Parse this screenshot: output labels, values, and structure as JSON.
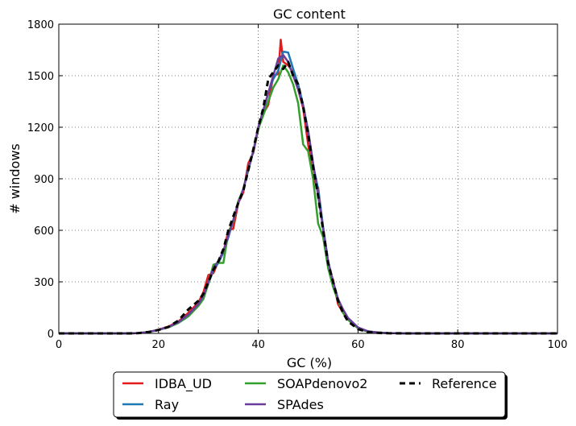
{
  "chart_data": {
    "type": "line",
    "title": "GC content",
    "xlabel": "GC (%)",
    "ylabel": "# windows",
    "xlim": [
      0,
      100
    ],
    "ylim": [
      0,
      1800
    ],
    "xticks": [
      0,
      20,
      40,
      60,
      80,
      100
    ],
    "yticks": [
      0,
      300,
      600,
      900,
      1200,
      1500,
      1800
    ],
    "grid": true,
    "legend_position": "bottom-center",
    "series": [
      {
        "name": "IDBA_UD",
        "color": "#e41a1c",
        "style": "solid",
        "x": [
          0,
          14,
          16,
          18,
          20,
          22,
          24,
          26,
          28,
          29,
          30,
          31,
          32,
          33,
          34,
          35,
          36,
          37,
          38,
          39,
          40,
          41,
          42,
          43,
          44,
          44.5,
          45,
          46,
          47,
          48,
          49,
          50,
          51,
          52,
          53,
          54,
          55,
          56,
          57,
          58,
          60,
          62,
          64,
          66,
          70,
          80,
          90,
          100
        ],
        "y": [
          0,
          0,
          2,
          8,
          22,
          40,
          70,
          120,
          180,
          240,
          340,
          350,
          420,
          470,
          600,
          610,
          760,
          820,
          990,
          1050,
          1190,
          1280,
          1330,
          1500,
          1510,
          1710,
          1580,
          1560,
          1520,
          1420,
          1310,
          1100,
          900,
          850,
          610,
          400,
          310,
          170,
          120,
          80,
          30,
          10,
          5,
          2,
          0,
          0,
          0,
          0
        ]
      },
      {
        "name": "Ray",
        "color": "#1f78b4",
        "style": "solid",
        "x": [
          0,
          14,
          16,
          18,
          20,
          22,
          24,
          26,
          28,
          29,
          30,
          31,
          32,
          33,
          34,
          35,
          36,
          37,
          38,
          39,
          40,
          41,
          42,
          43,
          44,
          45,
          46,
          47,
          48,
          49,
          50,
          51,
          52,
          53,
          54,
          55,
          56,
          57,
          58,
          60,
          62,
          64,
          66,
          70,
          80,
          90,
          100
        ],
        "y": [
          0,
          0,
          2,
          8,
          20,
          36,
          62,
          100,
          165,
          210,
          290,
          370,
          410,
          470,
          560,
          660,
          760,
          840,
          950,
          1060,
          1190,
          1290,
          1400,
          1480,
          1530,
          1640,
          1635,
          1540,
          1450,
          1330,
          1180,
          980,
          840,
          620,
          420,
          300,
          200,
          130,
          80,
          30,
          10,
          5,
          2,
          0,
          0,
          0,
          0
        ]
      },
      {
        "name": "SOAPdenovo2",
        "color": "#33a02c",
        "style": "solid",
        "x": [
          0,
          14,
          16,
          18,
          20,
          22,
          24,
          26,
          28,
          29,
          30,
          31,
          32,
          33,
          34,
          35,
          36,
          37,
          38,
          39,
          40,
          41,
          42,
          43,
          44,
          45,
          46,
          47,
          48,
          49,
          50,
          51,
          52,
          53,
          54,
          55,
          56,
          57,
          58,
          60,
          62,
          64,
          66,
          70,
          80,
          90,
          100
        ],
        "y": [
          0,
          0,
          2,
          8,
          20,
          36,
          62,
          100,
          160,
          200,
          290,
          400,
          410,
          410,
          590,
          650,
          770,
          840,
          950,
          1060,
          1190,
          1270,
          1350,
          1430,
          1480,
          1560,
          1520,
          1450,
          1340,
          1100,
          1060,
          900,
          640,
          560,
          380,
          270,
          190,
          120,
          80,
          30,
          10,
          5,
          2,
          0,
          0,
          0,
          0
        ]
      },
      {
        "name": "SPAdes",
        "color": "#6a3d9a",
        "style": "solid",
        "x": [
          0,
          14,
          16,
          18,
          20,
          22,
          24,
          26,
          28,
          29,
          30,
          31,
          32,
          33,
          34,
          35,
          36,
          37,
          38,
          39,
          40,
          41,
          42,
          43,
          44,
          45,
          46,
          47,
          48,
          49,
          50,
          51,
          52,
          53,
          54,
          55,
          56,
          57,
          58,
          60,
          62,
          64,
          66,
          70,
          80,
          90,
          100
        ],
        "y": [
          0,
          0,
          2,
          8,
          21,
          38,
          65,
          110,
          170,
          220,
          300,
          380,
          420,
          480,
          570,
          660,
          760,
          840,
          960,
          1060,
          1200,
          1300,
          1400,
          1500,
          1600,
          1620,
          1580,
          1500,
          1420,
          1320,
          1180,
          990,
          800,
          610,
          420,
          300,
          200,
          140,
          90,
          35,
          12,
          5,
          2,
          0,
          0,
          0,
          0
        ]
      },
      {
        "name": "Reference",
        "color": "#000000",
        "style": "dashed",
        "x": [
          0,
          14,
          16,
          18,
          20,
          22,
          24,
          26,
          28,
          29,
          30,
          31,
          32,
          33,
          34,
          35,
          36,
          37,
          38,
          39,
          40,
          41,
          42,
          43,
          44,
          45,
          46,
          47,
          48,
          49,
          50,
          51,
          52,
          53,
          54,
          55,
          56,
          57,
          58,
          60,
          62,
          64,
          66,
          70,
          80,
          90,
          100
        ],
        "y": [
          0,
          0,
          2,
          8,
          20,
          38,
          75,
          140,
          190,
          230,
          300,
          370,
          420,
          490,
          600,
          680,
          760,
          830,
          950,
          1070,
          1200,
          1310,
          1480,
          1520,
          1560,
          1540,
          1580,
          1500,
          1450,
          1320,
          1160,
          970,
          800,
          600,
          410,
          300,
          190,
          120,
          70,
          25,
          8,
          3,
          1,
          0,
          0,
          0,
          0
        ]
      }
    ]
  }
}
